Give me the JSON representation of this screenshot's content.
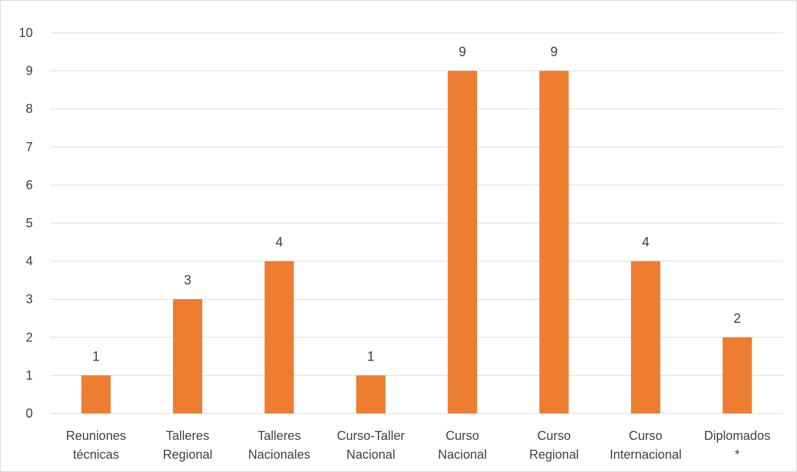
{
  "chart_data": {
    "type": "bar",
    "categories": [
      [
        "Reuniones",
        "técnicas"
      ],
      [
        "Talleres",
        "Regional"
      ],
      [
        "Talleres",
        "Nacionales"
      ],
      [
        "Curso-Taller",
        "Nacional"
      ],
      [
        "Curso",
        "Nacional"
      ],
      [
        "Curso",
        "Regional"
      ],
      [
        "Curso",
        "Internacional"
      ],
      [
        "Diplomados",
        "*"
      ]
    ],
    "values": [
      1,
      3,
      4,
      1,
      9,
      9,
      4,
      2
    ],
    "data_labels": [
      "1",
      "3",
      "4",
      "1",
      "9",
      "9",
      "4",
      "2"
    ],
    "ylim": [
      0,
      10
    ],
    "yticks": [
      "0",
      "1",
      "2",
      "3",
      "4",
      "5",
      "6",
      "7",
      "8",
      "9",
      "10"
    ],
    "grid": true,
    "legend": "none",
    "bar_color": "#ED7D31",
    "title": "",
    "xlabel": "",
    "ylabel": ""
  }
}
